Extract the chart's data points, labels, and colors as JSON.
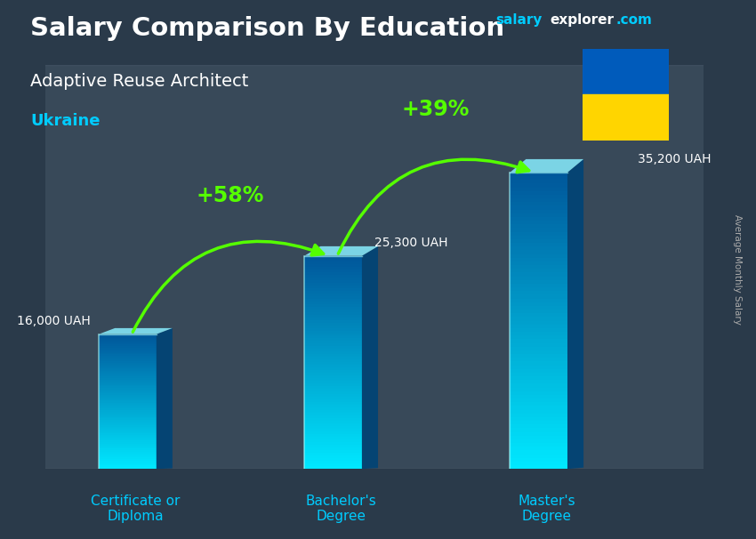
{
  "title_salary": "Salary Comparison By Education",
  "subtitle": "Adaptive Reuse Architect",
  "country": "Ukraine",
  "site_salary": "salary",
  "site_explorer": "explorer",
  "site_com": ".com",
  "site_salary_color": "#00ccff",
  "site_explorer_color": "#ffffff",
  "site_com_color": "#00ccff",
  "categories": [
    "Certificate or\nDiploma",
    "Bachelor's\nDegree",
    "Master's\nDegree"
  ],
  "values": [
    16000,
    25300,
    35200
  ],
  "value_labels": [
    "16,000 UAH",
    "25,300 UAH",
    "35,200 UAH"
  ],
  "pct_labels": [
    "+58%",
    "+39%"
  ],
  "bar_color_top": "#00e8ff",
  "bar_color_mid": "#00aacc",
  "bar_color_bottom": "#0066aa",
  "bar_right_color": "#005588",
  "bar_top_color": "#55eeff",
  "bg_color": "#2a3a4a",
  "title_color": "#ffffff",
  "subtitle_color": "#ffffff",
  "country_color": "#00ccff",
  "label_color": "#ffffff",
  "pct_color": "#aaff00",
  "cat_color": "#00ccff",
  "ylabel_text": "Average Monthly Salary",
  "ukraine_flag_blue": "#005BBB",
  "ukraine_flag_yellow": "#FFD500",
  "arrow_color": "#55ff00",
  "bar_positions": [
    0,
    1,
    2
  ],
  "bar_width": 0.28,
  "xlim": [
    -0.4,
    2.8
  ],
  "ylim": [
    0,
    48000
  ],
  "photo_overlay_alpha": 0.45
}
